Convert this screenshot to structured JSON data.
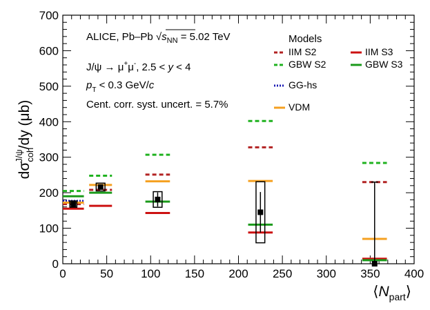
{
  "chart_data": {
    "type": "scatter",
    "title": "",
    "xlabel": {
      "prefix": "⟨",
      "base": "N",
      "sub": "part",
      "suffix": "⟩"
    },
    "ylabel": {
      "pre": "dσ",
      "sup": "J/ψ",
      "sub": "coh",
      "post": "/dy (μb)"
    },
    "xlim": [
      0,
      400
    ],
    "ylim": [
      0,
      700
    ],
    "xticks": [
      "0",
      "50",
      "100",
      "150",
      "200",
      "250",
      "300",
      "350",
      "400"
    ],
    "yticks": [
      "0",
      "100",
      "200",
      "300",
      "400",
      "500",
      "600",
      "700"
    ],
    "xtick_values": [
      0,
      50,
      100,
      150,
      200,
      250,
      300,
      350,
      400
    ],
    "ytick_values": [
      0,
      100,
      200,
      300,
      400,
      500,
      600,
      700
    ],
    "annotations": {
      "line1": {
        "a": "ALICE, Pb–Pb ",
        "rad": "s",
        "rad_sub": "NN",
        "b": " = 5.02 TeV"
      },
      "line2": {
        "a": "J/ψ → μ",
        "sup1": "+",
        "b": "μ",
        "sup2": "-",
        "c": ", 2.5 < ",
        "y": "y",
        "d": " < 4"
      },
      "line3": {
        "p": "p",
        "sub": "T",
        "rest": " < 0.3 GeV/",
        "c": "c"
      },
      "line4": "Cent. corr. syst. uncert. = 5.7%"
    },
    "legend": {
      "title": "Models",
      "entries": [
        {
          "label": "IIM S2",
          "color": "#b22222",
          "style": "dashed"
        },
        {
          "label": "IIM S3",
          "color": "#cc1111",
          "style": "solid"
        },
        {
          "label": "GBW S2",
          "color": "#1fb21f",
          "style": "dashed"
        },
        {
          "label": "GBW S3",
          "color": "#1a9a1a",
          "style": "solid"
        },
        {
          "label": "GG-hs",
          "color": "#1a1ab4",
          "style": "dotted"
        },
        {
          "label": "VDM",
          "color": "#f5a020",
          "style": "solid"
        }
      ]
    },
    "data": [
      {
        "x": 12,
        "y": 168,
        "stat": 5,
        "syst": 9,
        "box_half_width": 4
      },
      {
        "x": 43,
        "y": 216,
        "stat": 6,
        "syst": 11,
        "box_half_width": 5
      },
      {
        "x": 108,
        "y": 181,
        "stat": 20,
        "syst": 22,
        "box_half_width": 5
      },
      {
        "x": 225,
        "y": 145,
        "stat": 57,
        "syst": 86,
        "box_half_width": 5
      },
      {
        "x": 355,
        "y": 0,
        "stat": 230,
        "syst": 0,
        "box_half_width": 0
      }
    ],
    "series": [
      {
        "name": "IIM S2",
        "color": "#b22222",
        "style": "dashed",
        "points": [
          {
            "x": 12,
            "y": 168,
            "hw": 12
          },
          {
            "x": 43,
            "y": 208,
            "hw": 13
          },
          {
            "x": 108,
            "y": 251,
            "hw": 14
          },
          {
            "x": 225,
            "y": 328,
            "hw": 14
          },
          {
            "x": 355,
            "y": 230,
            "hw": 14
          }
        ]
      },
      {
        "name": "IIM S3",
        "color": "#cc1111",
        "style": "solid",
        "points": [
          {
            "x": 12,
            "y": 155,
            "hw": 12
          },
          {
            "x": 43,
            "y": 163,
            "hw": 13
          },
          {
            "x": 108,
            "y": 143,
            "hw": 14
          },
          {
            "x": 225,
            "y": 88,
            "hw": 14
          },
          {
            "x": 355,
            "y": 14,
            "hw": 14
          }
        ]
      },
      {
        "name": "GBW S2",
        "color": "#1fb21f",
        "style": "dashed",
        "points": [
          {
            "x": 12,
            "y": 205,
            "hw": 12
          },
          {
            "x": 43,
            "y": 248,
            "hw": 13
          },
          {
            "x": 108,
            "y": 307,
            "hw": 14
          },
          {
            "x": 225,
            "y": 402,
            "hw": 14
          },
          {
            "x": 355,
            "y": 284,
            "hw": 14
          }
        ]
      },
      {
        "name": "GBW S3",
        "color": "#1a9a1a",
        "style": "solid",
        "points": [
          {
            "x": 12,
            "y": 190,
            "hw": 12
          },
          {
            "x": 43,
            "y": 200,
            "hw": 13
          },
          {
            "x": 108,
            "y": 175,
            "hw": 14
          },
          {
            "x": 225,
            "y": 110,
            "hw": 14
          },
          {
            "x": 355,
            "y": 10,
            "hw": 14
          }
        ]
      },
      {
        "name": "GG-hs",
        "color": "#1a1ab4",
        "style": "dotted",
        "points": [
          {
            "x": 12,
            "y": 177,
            "hw": 12
          }
        ]
      },
      {
        "name": "VDM",
        "color": "#f5a020",
        "style": "solid",
        "points": [
          {
            "x": 12,
            "y": 172,
            "hw": 12
          },
          {
            "x": 43,
            "y": 222,
            "hw": 13
          },
          {
            "x": 108,
            "y": 232,
            "hw": 14
          },
          {
            "x": 225,
            "y": 233,
            "hw": 14
          },
          {
            "x": 355,
            "y": 70,
            "hw": 14
          }
        ]
      }
    ]
  }
}
